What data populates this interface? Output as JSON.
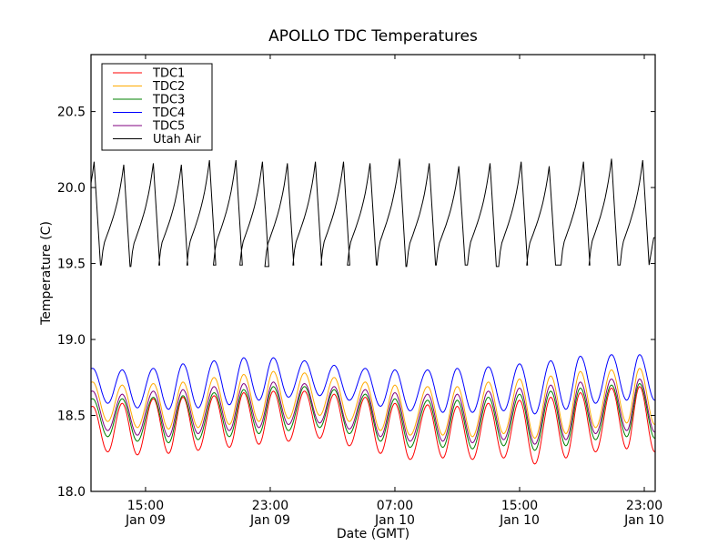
{
  "chart_data": {
    "type": "line",
    "title": "APOLLO TDC Temperatures",
    "xlabel": "Date (GMT)",
    "ylabel": "Temperature (C)",
    "ylim": [
      18.0,
      20.875
    ],
    "xlim_hours": [
      -3.5,
      32.7
    ],
    "x_reference": "hours after 15:00 Jan 09",
    "yticks": [
      {
        "value": 18.0,
        "label": "18.0"
      },
      {
        "value": 18.5,
        "label": "18.5"
      },
      {
        "value": 19.0,
        "label": "19.0"
      },
      {
        "value": 19.5,
        "label": "19.5"
      },
      {
        "value": 20.0,
        "label": "20.0"
      },
      {
        "value": 20.5,
        "label": "20.5"
      }
    ],
    "xticks": [
      {
        "hours": 0,
        "time": "15:00",
        "date": "Jan 09"
      },
      {
        "hours": 8,
        "time": "23:00",
        "date": "Jan 09"
      },
      {
        "hours": 16,
        "time": "07:00",
        "date": "Jan 10"
      },
      {
        "hours": 24,
        "time": "15:00",
        "date": "Jan 10"
      },
      {
        "hours": 32,
        "time": "23:00",
        "date": "Jan 10"
      }
    ],
    "grid": false,
    "legend": "top-left",
    "series": [
      {
        "name": "TDC1",
        "color": "#ff0000",
        "shape": "sine",
        "peak_hours": [
          -3.4,
          -1.5,
          0.5,
          2.4,
          4.4,
          6.3,
          8.2,
          10.2,
          12.1,
          14.1,
          16.0,
          18.1,
          20.0,
          22.0,
          24.0,
          26.0,
          27.9,
          29.9,
          31.7
        ],
        "peaks": [
          18.56,
          18.58,
          18.61,
          18.62,
          18.63,
          18.65,
          18.66,
          18.66,
          18.64,
          18.62,
          18.58,
          18.57,
          18.56,
          18.58,
          18.6,
          18.62,
          18.65,
          18.68,
          18.69
        ],
        "troughs": [
          18.26,
          18.24,
          18.25,
          18.27,
          18.29,
          18.31,
          18.33,
          18.35,
          18.3,
          18.25,
          18.21,
          18.22,
          18.21,
          18.22,
          18.18,
          18.22,
          18.26,
          18.28,
          18.26
        ]
      },
      {
        "name": "TDC2",
        "color": "#ffaa00",
        "shape": "sine",
        "peak_hours": [
          -3.4,
          -1.5,
          0.5,
          2.4,
          4.4,
          6.3,
          8.2,
          10.2,
          12.1,
          14.1,
          16.0,
          18.1,
          20.0,
          22.0,
          24.0,
          26.0,
          27.9,
          29.9,
          31.7
        ],
        "peaks": [
          18.72,
          18.7,
          18.71,
          18.72,
          18.75,
          18.77,
          18.79,
          18.78,
          18.75,
          18.72,
          18.7,
          18.69,
          18.69,
          18.72,
          18.74,
          18.76,
          18.79,
          18.8,
          18.81
        ],
        "troughs": [
          18.46,
          18.42,
          18.41,
          18.42,
          18.44,
          18.46,
          18.48,
          18.5,
          18.46,
          18.4,
          18.37,
          18.37,
          18.36,
          18.38,
          18.35,
          18.38,
          18.42,
          18.45,
          18.44
        ]
      },
      {
        "name": "TDC3",
        "color": "#008000",
        "shape": "sine",
        "peak_hours": [
          -3.4,
          -1.5,
          0.5,
          2.4,
          4.4,
          6.3,
          8.2,
          10.2,
          12.1,
          14.1,
          16.0,
          18.1,
          20.0,
          22.0,
          24.0,
          26.0,
          27.9,
          29.9,
          31.7
        ],
        "peaks": [
          18.61,
          18.61,
          18.62,
          18.63,
          18.65,
          18.67,
          18.69,
          18.69,
          18.67,
          18.64,
          18.61,
          18.6,
          18.6,
          18.62,
          18.64,
          18.66,
          18.68,
          18.7,
          18.71
        ],
        "troughs": [
          18.36,
          18.33,
          18.32,
          18.34,
          18.36,
          18.38,
          18.4,
          18.42,
          18.38,
          18.33,
          18.29,
          18.29,
          18.28,
          18.3,
          18.27,
          18.3,
          18.34,
          18.36,
          18.35
        ]
      },
      {
        "name": "TDC4",
        "color": "#0000ff",
        "shape": "sine",
        "peak_hours": [
          -3.4,
          -1.5,
          0.5,
          2.4,
          4.4,
          6.3,
          8.2,
          10.2,
          12.1,
          14.1,
          16.0,
          18.1,
          20.0,
          22.0,
          24.0,
          26.0,
          27.9,
          29.9,
          31.7
        ],
        "peaks": [
          18.81,
          18.8,
          18.81,
          18.84,
          18.86,
          18.88,
          18.88,
          18.86,
          18.83,
          18.81,
          18.8,
          18.8,
          18.81,
          18.82,
          18.84,
          18.86,
          18.89,
          18.9,
          18.9
        ],
        "troughs": [
          18.58,
          18.55,
          18.54,
          18.55,
          18.57,
          18.6,
          18.62,
          18.63,
          18.6,
          18.56,
          18.53,
          18.52,
          18.52,
          18.53,
          18.51,
          18.54,
          18.58,
          18.6,
          18.6
        ]
      },
      {
        "name": "TDC5",
        "color": "#800080",
        "shape": "sine",
        "peak_hours": [
          -3.4,
          -1.5,
          0.5,
          2.4,
          4.4,
          6.3,
          8.2,
          10.2,
          12.1,
          14.1,
          16.0,
          18.1,
          20.0,
          22.0,
          24.0,
          26.0,
          27.9,
          29.9,
          31.7
        ],
        "peaks": [
          18.66,
          18.64,
          18.66,
          18.67,
          18.69,
          18.71,
          18.72,
          18.71,
          18.69,
          18.67,
          18.65,
          18.64,
          18.64,
          18.66,
          18.68,
          18.7,
          18.72,
          18.74,
          18.74
        ],
        "troughs": [
          18.4,
          18.37,
          18.36,
          18.38,
          18.4,
          18.42,
          18.44,
          18.45,
          18.41,
          18.36,
          18.33,
          18.33,
          18.32,
          18.34,
          18.31,
          18.34,
          18.38,
          18.4,
          18.39
        ]
      },
      {
        "name": "Utah Air",
        "color": "#000000",
        "shape": "sawtooth",
        "peak_hours": [
          -3.3,
          -1.4,
          0.5,
          2.3,
          4.1,
          5.8,
          7.5,
          9.1,
          10.9,
          12.7,
          14.4,
          16.3,
          18.2,
          20.1,
          22.1,
          24.1,
          25.9,
          28.1,
          29.9,
          31.9
        ],
        "peaks": [
          20.17,
          20.15,
          20.16,
          20.15,
          20.18,
          20.18,
          20.17,
          20.16,
          20.17,
          20.17,
          20.16,
          20.19,
          20.16,
          20.14,
          20.16,
          20.17,
          20.14,
          20.17,
          20.19,
          20.18
        ],
        "troughs": [
          19.49,
          19.48,
          19.49,
          19.49,
          19.49,
          19.49,
          19.48,
          19.49,
          19.49,
          19.49,
          19.49,
          19.48,
          19.49,
          19.49,
          19.48,
          19.49,
          19.49,
          19.49,
          19.49,
          19.49
        ]
      }
    ]
  }
}
